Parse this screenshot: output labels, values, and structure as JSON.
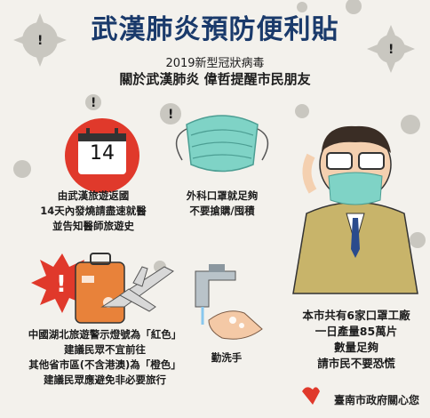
{
  "title": "武漢肺炎預防便利貼",
  "subtitle_line1": "2019新型冠狀病毒",
  "subtitle_line2": "關於武漢肺炎  偉哲提醒市民朋友",
  "calendar_day": "14",
  "tips": {
    "travel": [
      "由武漢旅遊返國",
      "14天內發燒請盡速就醫",
      "並告知醫師旅遊史"
    ],
    "mask": [
      "外科口罩就足夠",
      "不要搶購/囤積"
    ],
    "alert": [
      "中國湖北旅遊警示燈號為「紅色」",
      "建議民眾不宜前往",
      "其他省市區(不含港澳)為「橙色」",
      "建議民眾應避免非必要旅行"
    ],
    "handwash": [
      "勤洗手"
    ],
    "supply": [
      "本市共有6家口罩工廠",
      "一日產量85萬片",
      "數量足夠",
      "請市民不要恐慌"
    ]
  },
  "footer": "臺南市政府關心您",
  "colors": {
    "title": "#1a3a6b",
    "mask": "#7fd3c6",
    "red": "#e0392b",
    "suitcase": "#e8823a"
  }
}
